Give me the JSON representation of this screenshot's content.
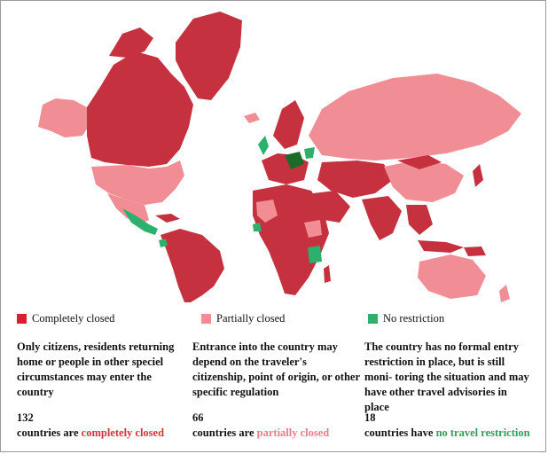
{
  "colors": {
    "completely_closed": "#c5313e",
    "partially_closed": "#f08d95",
    "no_restriction": "#2cb06c",
    "dark_green": "#1d6b2a"
  },
  "legend": [
    {
      "label": "Completely closed",
      "color": "#d91f2a"
    },
    {
      "label": "Partially closed",
      "color": "#f08d95"
    },
    {
      "label": "No restriction",
      "color": "#2cb06c"
    }
  ],
  "columns": [
    {
      "description": "Only citizens, residents returning home or people in other speciel circumstances may enter the country",
      "count": "132",
      "prefix": "countries are",
      "highlight": "completely closed"
    },
    {
      "description": "Entrance into the country may depend on the traveler's citizenship, point of origin, or other specific regulation",
      "count": "66",
      "prefix": "countries are",
      "highlight": "partially closed"
    },
    {
      "description": "The country has no formal entry restriction in place, but is still moni- toring the situation and may have other travel advisories in place",
      "count": "18",
      "prefix": "countries have",
      "highlight": "no travel restriction"
    }
  ]
}
